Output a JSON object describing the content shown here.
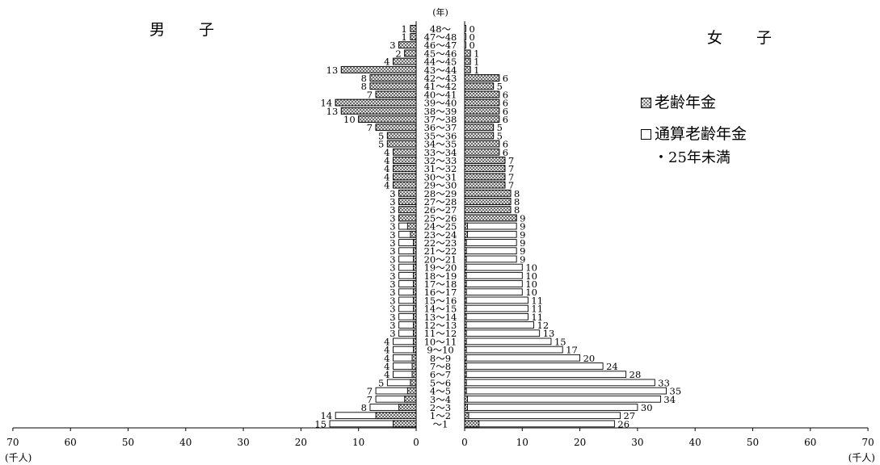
{
  "chart_data": {
    "type": "bar",
    "orientation": "horizontal-pyramid",
    "y_unit_label": "(年)",
    "x_unit_label": "(千人)",
    "left_panel_title": "男 子",
    "right_panel_title": "女 子",
    "xlim": [
      0,
      70
    ],
    "x_ticks": [
      70,
      60,
      50,
      40,
      30,
      20,
      10,
      0
    ],
    "legend": [
      {
        "key": "old",
        "label": "老齢年金"
      },
      {
        "key": "tsusan",
        "label": "通算老齢年金",
        "sublabel": "・25年未満"
      }
    ],
    "colors": {
      "old_fill": "#555555",
      "tsusan_fill": "#ffffff",
      "stroke": "#000000"
    },
    "categories": [
      "48～",
      "47～48",
      "46～47",
      "45～46",
      "44～45",
      "43～44",
      "42～43",
      "41～42",
      "40～41",
      "39～40",
      "38～39",
      "37～38",
      "36～37",
      "35～36",
      "34～35",
      "33～34",
      "32～33",
      "31～32",
      "30～31",
      "29～30",
      "28～29",
      "27～28",
      "26～27",
      "25～26",
      "24～25",
      "23～24",
      "22～23",
      "21～22",
      "20～21",
      "19～20",
      "18～19",
      "17～18",
      "16～17",
      "15～16",
      "14～15",
      "13～14",
      "12～13",
      "11～12",
      "10～11",
      "9～10",
      "8～9",
      "7～8",
      "6～7",
      "5～6",
      "4～5",
      "3～4",
      "2～3",
      "1～2",
      "～1"
    ],
    "male_totals": [
      1,
      1,
      3,
      2,
      4,
      13,
      8,
      8,
      7,
      14,
      13,
      10,
      7,
      5,
      5,
      4,
      4,
      4,
      4,
      4,
      3,
      3,
      3,
      3,
      3,
      3,
      3,
      3,
      3,
      3,
      3,
      3,
      3,
      3,
      3,
      3,
      3,
      3,
      4,
      4,
      4,
      4,
      4,
      5,
      7,
      7,
      8,
      14,
      15
    ],
    "male_old": [
      1,
      1,
      3,
      2,
      4,
      13,
      8,
      8,
      7,
      14,
      13,
      10,
      7,
      5,
      5,
      4,
      4,
      4,
      4,
      4,
      3,
      3,
      3,
      3,
      1.5,
      1,
      0.5,
      0.5,
      0.5,
      0.5,
      0.5,
      0.5,
      0.5,
      0.5,
      0.5,
      0.5,
      0.5,
      0.5,
      0.5,
      0.5,
      0.7,
      0.7,
      0.7,
      1,
      1.5,
      2,
      3,
      7,
      4
    ],
    "female_totals": [
      0,
      0,
      0,
      1,
      1,
      1,
      6,
      5,
      6,
      6,
      6,
      6,
      5,
      5,
      6,
      6,
      7,
      7,
      7,
      7,
      8,
      8,
      8,
      9,
      9,
      9,
      9,
      9,
      9,
      10,
      10,
      10,
      10,
      11,
      11,
      11,
      12,
      13,
      15,
      17,
      20,
      24,
      28,
      33,
      35,
      34,
      30,
      27,
      26
    ],
    "female_old": [
      0,
      0,
      0,
      1,
      1,
      1,
      6,
      5,
      6,
      6,
      6,
      6,
      5,
      5,
      6,
      6,
      7,
      7,
      7,
      7,
      8,
      8,
      8,
      9,
      0.5,
      0.5,
      0.3,
      0.3,
      0.3,
      0.3,
      0.3,
      0.3,
      0.3,
      0.3,
      0.3,
      0.3,
      0.3,
      0.3,
      0.3,
      0.3,
      0.3,
      0.3,
      0.3,
      0.3,
      0.3,
      0.5,
      0.5,
      0.7,
      2.5
    ]
  }
}
